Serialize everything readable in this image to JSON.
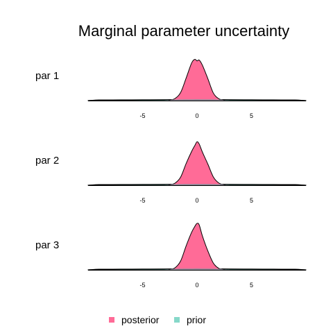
{
  "chart_data": {
    "type": "area",
    "title": "Marginal parameter uncertainty",
    "xlabel": "",
    "ylabel": "",
    "xlim": [
      -10,
      10
    ],
    "x_ticks": [
      -5,
      0,
      5
    ],
    "x_tick_labels": [
      "-5",
      "0",
      "5"
    ],
    "legend": {
      "position": "bottom",
      "entries": [
        {
          "name": "posterior",
          "color": "#ff6b97"
        },
        {
          "name": "prior",
          "color": "#86d8c9"
        }
      ]
    },
    "series_colors": {
      "posterior": "#ff6b97",
      "prior": "#86d8c9",
      "overlap": "#8d8a99"
    },
    "panels": [
      {
        "label": "par 1",
        "prior": {
          "x": [
            -10,
            -9.5,
            -9,
            -7,
            -5,
            -3,
            -2,
            -1,
            0,
            1,
            2,
            3,
            5,
            7,
            9,
            9.5,
            10
          ],
          "density": [
            0.001,
            0.006,
            0.009,
            0.01,
            0.011,
            0.013,
            0.014,
            0.016,
            0.017,
            0.016,
            0.014,
            0.013,
            0.011,
            0.01,
            0.009,
            0.006,
            0.001
          ]
        },
        "posterior": {
          "x": [
            -3,
            -2.5,
            -2,
            -1.5,
            -1,
            -0.5,
            -0.2,
            0,
            0.2,
            0.5,
            1,
            1.5,
            2,
            2.5,
            3
          ],
          "density": [
            0,
            0.005,
            0.03,
            0.11,
            0.3,
            0.5,
            0.55,
            0.53,
            0.54,
            0.47,
            0.29,
            0.1,
            0.025,
            0.004,
            0
          ]
        }
      },
      {
        "label": "par 2",
        "prior": {
          "x": [
            -10,
            -9.5,
            -9,
            -7,
            -5,
            -3,
            -2,
            -1,
            0,
            1,
            2,
            3,
            5,
            7,
            9,
            9.5,
            10
          ],
          "density": [
            0.001,
            0.006,
            0.009,
            0.01,
            0.011,
            0.013,
            0.014,
            0.016,
            0.017,
            0.016,
            0.014,
            0.013,
            0.011,
            0.01,
            0.009,
            0.006,
            0.001
          ]
        },
        "posterior": {
          "x": [
            -3,
            -2.5,
            -2,
            -1.5,
            -1,
            -0.5,
            -0.2,
            0,
            0.2,
            0.5,
            1,
            1.5,
            2,
            2.5,
            3
          ],
          "density": [
            0,
            0.005,
            0.03,
            0.11,
            0.29,
            0.45,
            0.53,
            0.58,
            0.55,
            0.44,
            0.28,
            0.11,
            0.03,
            0.005,
            0
          ]
        }
      },
      {
        "label": "par 3",
        "prior": {
          "x": [
            -10,
            -9.5,
            -9,
            -7,
            -5,
            -3,
            -2,
            -1,
            0,
            1,
            2,
            3,
            5,
            7,
            9,
            9.5,
            10
          ],
          "density": [
            0.001,
            0.006,
            0.009,
            0.01,
            0.011,
            0.013,
            0.014,
            0.016,
            0.017,
            0.016,
            0.014,
            0.013,
            0.011,
            0.01,
            0.009,
            0.006,
            0.001
          ]
        },
        "posterior": {
          "x": [
            -3,
            -2.5,
            -2,
            -1.5,
            -1,
            -0.5,
            -0.2,
            0,
            0.2,
            0.5,
            1,
            1.5,
            2,
            2.5,
            3
          ],
          "density": [
            0,
            0.005,
            0.03,
            0.12,
            0.32,
            0.5,
            0.58,
            0.62,
            0.6,
            0.45,
            0.25,
            0.09,
            0.02,
            0.004,
            0
          ]
        }
      }
    ]
  }
}
